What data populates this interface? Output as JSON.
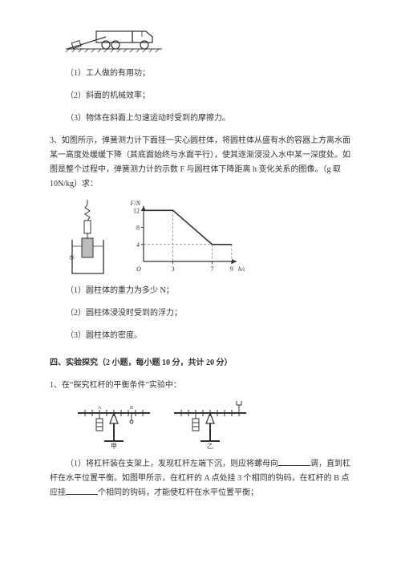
{
  "truck_figure": {
    "alt": "truck-on-incline",
    "colors": {
      "stroke": "#333333"
    }
  },
  "q2_items": {
    "a": "（1）工人做的有用功；",
    "b": "（2）斜面的机械效率；",
    "c": "（3）物体在斜面上匀速运动时受到的摩擦力。"
  },
  "q3_text": "3、如图所示，弹簧测力计下面挂一实心圆柱体，将圆柱体从盛有水的容器上方离水面某一高度处缓缓下降（其底面始终与水面平行），使其逐渐浸没入水中某一深度处。如图是整个过程中，弹簧测力计的示数 F 与圆柱体下降距离 h 变化关系的图像。（g 取 10N/kg）求：",
  "cylinder_figure": {
    "alt": "beaker-cylinder-spring-scale",
    "colors": {
      "stroke": "#333333",
      "hatch": "#555555"
    }
  },
  "chart": {
    "type": "line",
    "title": "",
    "xlabel": "h/cm",
    "ylabel": "F/N",
    "xlim": [
      0,
      9.5
    ],
    "ylim": [
      0,
      13
    ],
    "xticks": [
      3,
      7,
      9
    ],
    "yticks": [
      4,
      8,
      12
    ],
    "data": [
      {
        "h": 0,
        "F": 12
      },
      {
        "h": 3,
        "F": 12
      },
      {
        "h": 7,
        "F": 4
      },
      {
        "h": 9,
        "F": 4
      }
    ],
    "colors": {
      "axis": "#333333",
      "line": "#333333",
      "tick": "#333333",
      "dash": "#777777",
      "bg": "#ffffff"
    },
    "line_width": 1.2,
    "dash_pattern": "3,2",
    "label_fontsize": 8
  },
  "q3_items": {
    "a": "（1）圆柱体的重力为多少 N；",
    "b": "（2）圆柱体浸没时受到的浮力；",
    "c": "（3）圆柱体的密度。"
  },
  "section4_title": "四、实验探究（2 小题，每小题 10 分，共计 20 分）",
  "exp1_intro": "1、在“探究杠杆的平衡条件”实验中：",
  "lever_figure": {
    "alt": "lever-balance-setups",
    "labels": {
      "left": "甲",
      "right": "乙"
    },
    "colors": {
      "stroke": "#333333"
    }
  },
  "exp1_item1_prefix": "（1）将杠杆装在支架上，发现杠杆左端下沉，则应将螺母向",
  "exp1_item1_mid1": "调，直到杠杆在水平位置平衡。如图甲所示，在杠杆的 A 点处挂 3 个相同的钩码，在杠杆的 B 点应挂",
  "exp1_item1_mid2": "个相同的钩码，才能使杠杆在水平位置平衡；"
}
